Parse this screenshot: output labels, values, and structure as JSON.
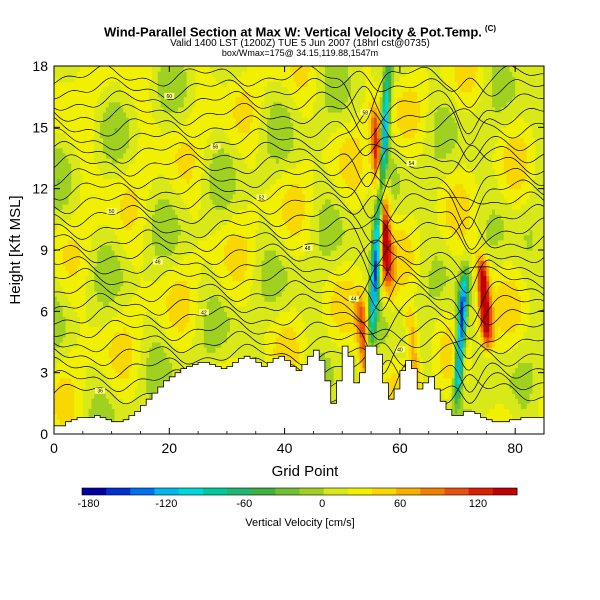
{
  "header": {
    "title": "Wind-Parallel Section at Max W: Vertical Velocity & Pot.Temp.",
    "title_unit": "(C)",
    "subtitle1": "Valid 1400 LST (1200Z) TUE 5 Jun 2007 (18hrl cst@0735)",
    "subtitle2": "box/Wmax=175@ 34.15,119.88,1547m"
  },
  "chart_data": {
    "type": "heatmap",
    "title": "Wind-Parallel Section at Max W: Vertical Velocity & Pot.Temp.",
    "xlabel": "Grid Point",
    "ylabel": "Height [Kft MSL]",
    "xlim": [
      0,
      85
    ],
    "ylim": [
      0,
      18
    ],
    "xticks": [
      "0",
      "20",
      "40",
      "60",
      "80"
    ],
    "yticks": [
      "0",
      "3",
      "6",
      "9",
      "12",
      "15",
      "18"
    ],
    "colorbar": {
      "label": "Vertical Velocity [cm/s]",
      "tick_labels": [
        "-180",
        "-120",
        "-60",
        "0",
        "60",
        "120"
      ],
      "tick_values": [
        -180,
        -120,
        -60,
        0,
        60,
        120
      ],
      "min": -185,
      "max": 150,
      "colors": [
        "#0000a0",
        "#0030d0",
        "#0070f0",
        "#00b8f0",
        "#00d8d8",
        "#00c8a0",
        "#20b870",
        "#40b040",
        "#70c030",
        "#a0d020",
        "#d8e818",
        "#f0f000",
        "#f8d800",
        "#f8b000",
        "#f08000",
        "#e85010",
        "#d82000",
        "#c00000"
      ]
    },
    "field": {
      "name": "vertical_velocity",
      "units": "cm/s",
      "updraft_cores": [
        {
          "x": 57.5,
          "z_bottom": 7.5,
          "z_top": 15.5,
          "w": 150
        },
        {
          "x": 52.5,
          "z_bottom": 2.5,
          "z_top": 6.5,
          "w": 90
        },
        {
          "x": 74,
          "z_bottom": 4.5,
          "z_top": 8.5,
          "w": 150
        },
        {
          "x": 61,
          "z_bottom": 2.0,
          "z_top": 6.0,
          "w": 60
        }
      ],
      "downdraft_cores": [
        {
          "x": 56,
          "z_bottom": 5.0,
          "z_top": 17.5,
          "w": -180
        },
        {
          "x": 71.5,
          "z_bottom": 2.0,
          "z_top": 7.5,
          "w": -180
        }
      ]
    },
    "theta_contours": {
      "name": "Potential temperature",
      "units": "C",
      "labels": [
        "36",
        "38",
        "40",
        "42",
        "44",
        "46",
        "48",
        "50",
        "52",
        "54",
        "56",
        "58",
        "60",
        "62",
        "64",
        "66"
      ]
    },
    "terrain_heights_kft": [
      0.4,
      0.4,
      0.6,
      0.7,
      0.8,
      0.8,
      0.8,
      0.9,
      0.8,
      0.7,
      0.6,
      0.6,
      0.7,
      0.9,
      1.1,
      1.4,
      1.7,
      2.0,
      2.3,
      2.6,
      2.8,
      3.0,
      3.2,
      3.3,
      3.4,
      3.5,
      3.5,
      3.4,
      3.3,
      3.2,
      3.3,
      3.5,
      3.7,
      3.8,
      3.7,
      3.5,
      3.3,
      3.5,
      3.7,
      3.8,
      3.6,
      3.3,
      3.1,
      3.4,
      3.8,
      4.1,
      3.6,
      2.6,
      1.5,
      2.6,
      4.3,
      3.8,
      2.5,
      3.0,
      4.3,
      4.3,
      3.9,
      2.5,
      1.7,
      2.2,
      3.1,
      3.6,
      3.2,
      2.2,
      2.5,
      2.8,
      2.2,
      1.6,
      1.2,
      0.9,
      0.9,
      1.1,
      1.1,
      1.0,
      0.8,
      0.7,
      0.6,
      0.6,
      0.6,
      0.7,
      0.7,
      0.8,
      0.8,
      0.8,
      0.8,
      0.8
    ]
  }
}
